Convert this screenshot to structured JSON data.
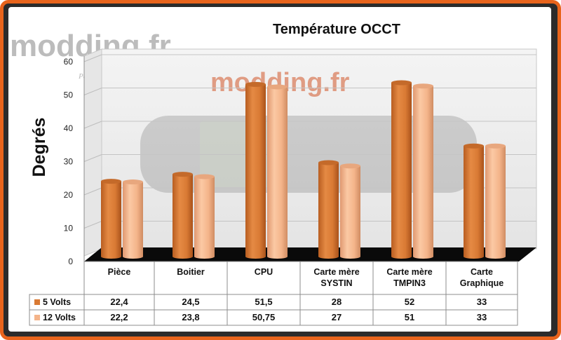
{
  "watermark": {
    "logo_text": "modding.fr",
    "tagline": "Parce que..."
  },
  "chart_data": {
    "type": "bar",
    "title": "Température OCCT",
    "xlabel": "",
    "ylabel": "Degrés",
    "ylim": [
      0,
      60
    ],
    "yticks": [
      "0",
      "10",
      "20",
      "30",
      "40",
      "50",
      "60"
    ],
    "categories": [
      [
        "Pièce"
      ],
      [
        "Boitier"
      ],
      [
        "CPU"
      ],
      [
        "Carte mère",
        "SYSTIN"
      ],
      [
        "Carte mère",
        "TMPIN3"
      ],
      [
        "Carte",
        "Graphique"
      ]
    ],
    "series": [
      {
        "name": "5 Volts",
        "color": "#d97a34",
        "values": [
          22.4,
          24.5,
          51.5,
          28,
          52,
          33
        ],
        "labels": [
          "22,4",
          "24,5",
          "51,5",
          "28",
          "52",
          "33"
        ]
      },
      {
        "name": "12 Volts",
        "color": "#f4b48a",
        "values": [
          22.2,
          23.8,
          50.75,
          27,
          51,
          33
        ],
        "labels": [
          "22,2",
          "23,8",
          "50,75",
          "27",
          "51",
          "33"
        ]
      }
    ],
    "grid": true,
    "legend": "table",
    "data_table": true
  }
}
